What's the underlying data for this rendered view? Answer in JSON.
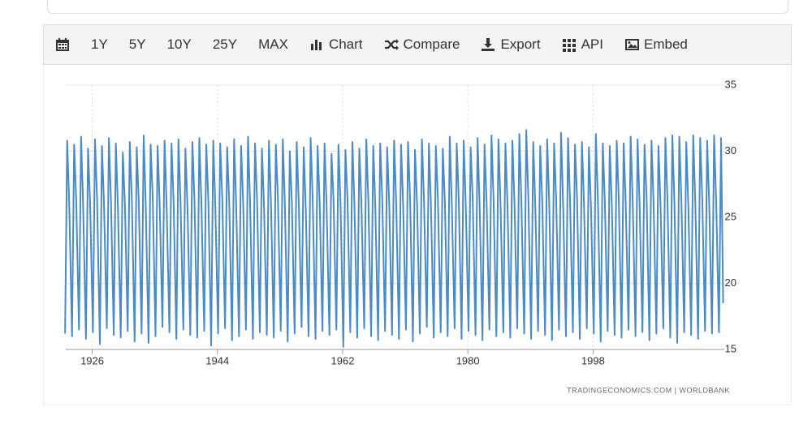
{
  "toolbar": {
    "items": [
      "1Y",
      "5Y",
      "10Y",
      "25Y",
      "MAX",
      "Chart",
      "Compare",
      "Export",
      "API",
      "Embed"
    ]
  },
  "chart_data": {
    "type": "line",
    "color": "#4a8ac6",
    "grid": true,
    "source": "TRADINGECONOMICS.COM  |  WORLDBANK",
    "xlim": [
      1922.2,
      2016.4
    ],
    "xticks": [
      1926,
      1944,
      1962,
      1980,
      1998
    ],
    "ylim": [
      15,
      35
    ],
    "yticks": [
      35,
      30,
      25,
      20,
      15
    ],
    "x": [
      1922.1,
      1922.4,
      1922.7,
      1923.1,
      1923.4,
      1923.7,
      1924.1,
      1924.4,
      1924.7,
      1925.1,
      1925.4,
      1925.7,
      1926.1,
      1926.4,
      1926.7,
      1927.1,
      1927.4,
      1927.7,
      1928.1,
      1928.4,
      1928.7,
      1929.1,
      1929.4,
      1929.7,
      1930.1,
      1930.4,
      1930.7,
      1931.1,
      1931.4,
      1931.7,
      1932.1,
      1932.4,
      1932.7,
      1933.1,
      1933.4,
      1933.7,
      1934.1,
      1934.4,
      1934.7,
      1935.1,
      1935.4,
      1935.7,
      1936.1,
      1936.4,
      1936.7,
      1937.1,
      1937.4,
      1937.7,
      1938.1,
      1938.4,
      1938.7,
      1939.1,
      1939.4,
      1939.7,
      1940.1,
      1940.4,
      1940.7,
      1941.1,
      1941.4,
      1941.7,
      1942.1,
      1942.4,
      1942.7,
      1943.1,
      1943.4,
      1943.7,
      1944.1,
      1944.4,
      1944.7,
      1945.1,
      1945.4,
      1945.7,
      1946.1,
      1946.4,
      1946.7,
      1947.1,
      1947.4,
      1947.7,
      1948.1,
      1948.4,
      1948.7,
      1949.1,
      1949.4,
      1949.7,
      1950.1,
      1950.4,
      1950.7,
      1951.1,
      1951.4,
      1951.7,
      1952.1,
      1952.4,
      1952.7,
      1953.1,
      1953.4,
      1953.7,
      1954.1,
      1954.4,
      1954.7,
      1955.1,
      1955.4,
      1955.7,
      1956.1,
      1956.4,
      1956.7,
      1957.1,
      1957.4,
      1957.7,
      1958.1,
      1958.4,
      1958.7,
      1959.1,
      1959.4,
      1959.7,
      1960.1,
      1960.4,
      1960.7,
      1961.1,
      1961.4,
      1961.7,
      1962.1,
      1962.4,
      1962.7,
      1963.1,
      1963.4,
      1963.7,
      1964.1,
      1964.4,
      1964.7,
      1965.1,
      1965.4,
      1965.7,
      1966.1,
      1966.4,
      1966.7,
      1967.1,
      1967.4,
      1967.7,
      1968.1,
      1968.4,
      1968.7,
      1969.1,
      1969.4,
      1969.7,
      1970.1,
      1970.4,
      1970.7,
      1971.1,
      1971.4,
      1971.7,
      1972.1,
      1972.4,
      1972.7,
      1973.1,
      1973.4,
      1973.7,
      1974.1,
      1974.4,
      1974.7,
      1975.1,
      1975.4,
      1975.7,
      1976.1,
      1976.4,
      1976.7,
      1977.1,
      1977.4,
      1977.7,
      1978.1,
      1978.4,
      1978.7,
      1979.1,
      1979.4,
      1979.7,
      1980.1,
      1980.4,
      1980.7,
      1981.1,
      1981.4,
      1981.7,
      1982.1,
      1982.4,
      1982.7,
      1983.1,
      1983.4,
      1983.7,
      1984.1,
      1984.4,
      1984.7,
      1985.1,
      1985.4,
      1985.7,
      1986.1,
      1986.4,
      1986.7,
      1987.1,
      1987.4,
      1987.7,
      1988.1,
      1988.4,
      1988.7,
      1989.1,
      1989.4,
      1989.7,
      1990.1,
      1990.4,
      1990.7,
      1991.1,
      1991.4,
      1991.7,
      1992.1,
      1992.4,
      1992.7,
      1993.1,
      1993.4,
      1993.7,
      1994.1,
      1994.4,
      1994.7,
      1995.1,
      1995.4,
      1995.7,
      1996.1,
      1996.4,
      1996.7,
      1997.1,
      1997.4,
      1997.7,
      1998.1,
      1998.4,
      1998.7,
      1999.1,
      1999.4,
      1999.7,
      2000.1,
      2000.4,
      2000.7,
      2001.1,
      2001.4,
      2001.7,
      2002.1,
      2002.4,
      2002.7,
      2003.1,
      2003.4,
      2003.7,
      2004.1,
      2004.4,
      2004.7,
      2005.1,
      2005.4,
      2005.7,
      2006.1,
      2006.4,
      2006.7,
      2007.1,
      2007.4,
      2007.7,
      2008.1,
      2008.4,
      2008.7,
      2009.1,
      2009.4,
      2009.7,
      2010.1,
      2010.4,
      2010.7,
      2011.1,
      2011.4,
      2011.7,
      2012.1,
      2012.4,
      2012.7,
      2013.1,
      2013.4,
      2013.7,
      2014.1,
      2014.4,
      2014.7,
      2015.1,
      2015.4,
      2015.7,
      2016.1,
      2016.4,
      2016.7
    ],
    "values": [
      16.2,
      30.8,
      26.0,
      16.0,
      30.5,
      26.3,
      16.5,
      31.1,
      25.8,
      15.8,
      30.2,
      26.1,
      16.3,
      30.9,
      26.4,
      15.4,
      30.4,
      25.9,
      16.6,
      31.0,
      26.2,
      16.1,
      30.6,
      25.7,
      15.9,
      29.9,
      26.0,
      16.4,
      30.7,
      26.3,
      15.6,
      30.3,
      26.1,
      16.2,
      31.2,
      25.8,
      15.5,
      30.5,
      26.4,
      16.0,
      30.4,
      26.0,
      16.7,
      30.8,
      25.9,
      16.3,
      30.6,
      26.2,
      15.8,
      30.9,
      26.1,
      16.5,
      30.2,
      25.7,
      16.1,
      30.7,
      26.3,
      15.9,
      31.0,
      26.0,
      16.4,
      30.5,
      26.2,
      15.3,
      30.8,
      25.8,
      16.2,
      30.6,
      26.4,
      16.6,
      30.3,
      26.1,
      15.7,
      30.9,
      25.9,
      16.0,
      30.4,
      26.2,
      16.5,
      31.1,
      26.0,
      15.8,
      30.6,
      26.3,
      16.3,
      30.2,
      25.8,
      16.1,
      30.8,
      26.1,
      15.9,
      30.5,
      26.4,
      16.4,
      30.9,
      25.9,
      15.6,
      30.0,
      26.2,
      16.2,
      30.7,
      26.0,
      16.7,
      30.3,
      25.7,
      16.0,
      31.0,
      26.3,
      15.8,
      30.4,
      26.1,
      16.4,
      30.6,
      25.8,
      16.1,
      29.8,
      26.2,
      16.5,
      30.5,
      26.0,
      15.2,
      30.1,
      26.4,
      16.3,
      30.7,
      25.9,
      15.9,
      30.2,
      26.1,
      16.6,
      30.9,
      26.2,
      16.0,
      30.4,
      25.8,
      15.7,
      30.6,
      26.3,
      16.4,
      30.3,
      26.0,
      16.1,
      30.8,
      26.1,
      15.8,
      30.5,
      25.9,
      16.5,
      30.7,
      26.4,
      15.6,
      30.1,
      26.0,
      16.2,
      30.9,
      26.2,
      16.7,
      30.6,
      25.8,
      15.9,
      30.4,
      26.3,
      16.3,
      30.2,
      26.1,
      16.0,
      31.1,
      25.9,
      16.6,
      30.6,
      26.2,
      15.8,
      30.8,
      26.0,
      16.4,
      30.3,
      26.4,
      16.1,
      31.0,
      25.8,
      15.7,
      30.5,
      26.1,
      16.5,
      31.2,
      26.3,
      16.0,
      30.9,
      26.0,
      16.3,
      30.6,
      25.9,
      15.9,
      30.8,
      26.2,
      16.6,
      31.3,
      26.1,
      16.2,
      31.6,
      26.4,
      15.8,
      30.7,
      25.8,
      16.4,
      30.4,
      26.2,
      16.1,
      30.9,
      26.0,
      15.7,
      30.6,
      26.3,
      16.5,
      31.4,
      25.9,
      16.0,
      31.0,
      26.1,
      16.3,
      30.5,
      26.4,
      15.8,
      30.7,
      26.0,
      16.6,
      30.3,
      25.8,
      16.2,
      31.3,
      26.2,
      15.6,
      30.6,
      26.1,
      16.4,
      30.4,
      25.9,
      16.1,
      30.8,
      26.3,
      15.9,
      30.6,
      26.0,
      16.5,
      31.1,
      26.2,
      16.0,
      30.9,
      25.8,
      16.3,
      30.5,
      26.4,
      15.7,
      30.8,
      26.1,
      16.2,
      30.4,
      25.9,
      16.6,
      31.0,
      26.2,
      15.9,
      31.2,
      26.0,
      15.5,
      31.1,
      26.3,
      16.3,
      30.7,
      25.8,
      16.1,
      31.2,
      26.1,
      15.8,
      31.0,
      26.4,
      16.4,
      30.8,
      26.0,
      16.2,
      31.2,
      26.2,
      16.3,
      31.0,
      18.5
    ]
  }
}
